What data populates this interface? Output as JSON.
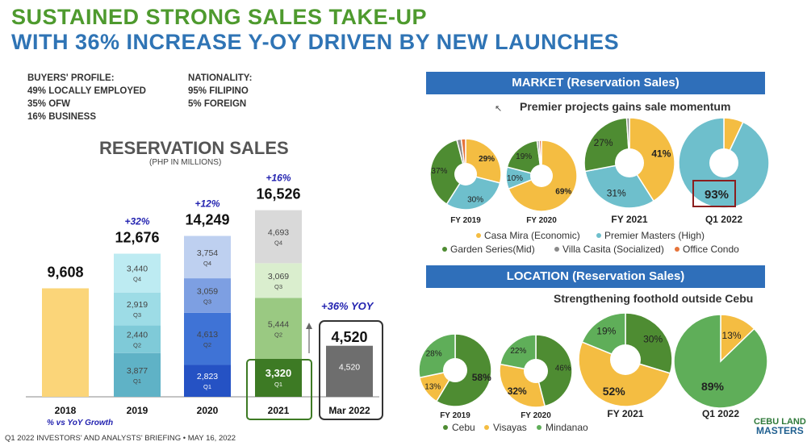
{
  "title_line1": "SUSTAINED STRONG SALES TAKE-UP",
  "title_line2": "WITH 36% INCREASE Y-OY DRIVEN BY NEW LAUNCHES",
  "buyers_profile": {
    "heading": "BUYERS' PROFILE:",
    "items": [
      "49% LOCALLY EMPLOYED",
      "35% OFW",
      "16% BUSINESS"
    ]
  },
  "nationality": {
    "heading": "NATIONALITY:",
    "items": [
      "95% FILIPINO",
      "5% FOREIGN"
    ]
  },
  "footer": "Q1 2022 INVESTORS' AND ANALYSTS' BRIEFING • MAY 16, 2022",
  "logo": {
    "line1": "CEBU LAND",
    "line2": "MASTERS"
  },
  "chart_data": [
    {
      "type": "bar",
      "title": "RESERVATION SALES",
      "subtitle": "(PHP IN MILLIONS)",
      "categories": [
        "2018",
        "2019",
        "2020",
        "2021",
        "Mar 2022"
      ],
      "totals": [
        "9,608",
        "12,676",
        "14,249",
        "16,526",
        "4,520"
      ],
      "growth": [
        "",
        "+32%",
        "+12%",
        "+16%",
        ""
      ],
      "quarterly": [
        {
          "category": "2018",
          "values": [
            9608
          ],
          "labels": [
            ""
          ],
          "colors": [
            "#fbd579"
          ]
        },
        {
          "category": "2019",
          "values": [
            3877,
            2440,
            2919,
            3440
          ],
          "labels": [
            "Q1",
            "Q2",
            "Q3",
            "Q4"
          ],
          "colors": [
            "#5fb2c6",
            "#7fcad8",
            "#9ddce6",
            "#bdebf2"
          ]
        },
        {
          "category": "2020",
          "values": [
            2823,
            4613,
            3059,
            3754
          ],
          "labels": [
            "Q1",
            "Q2",
            "Q3",
            "Q4"
          ],
          "colors": [
            "#2552c4",
            "#3f73d6",
            "#7d9fe2",
            "#bed0f0"
          ]
        },
        {
          "category": "2021",
          "values": [
            3320,
            5444,
            3069,
            4693
          ],
          "labels": [
            "Q1",
            "Q2",
            "Q3",
            "Q4"
          ],
          "colors": [
            "#3d7a24",
            "#9ac982",
            "#daeece",
            "#d9d9d9"
          ]
        },
        {
          "category": "Mar 2022",
          "values": [
            4520
          ],
          "labels": [
            ""
          ],
          "colors": [
            "#6e6e6e"
          ]
        }
      ],
      "value_labels": {
        "2019": [
          "3,877",
          "2,440",
          "2,919",
          "3,440"
        ],
        "2020": [
          "2,823",
          "4,613",
          "3,059",
          "3,754"
        ],
        "2021": [
          "3,320",
          "5,444",
          "3,069",
          "4,693"
        ],
        "Mar 2022": [
          "4,520"
        ]
      },
      "yoy_callout": "+36% YOY",
      "note": "% vs YoY Growth"
    },
    {
      "type": "pie",
      "title": "MARKET (Reservation Sales)",
      "subtitle": "Premier projects gains sale momentum",
      "legend": [
        {
          "name": "Casa Mira (Economic)",
          "color": "#f4bd42"
        },
        {
          "name": "Premier Masters (High)",
          "color": "#6ebfcc"
        },
        {
          "name": "Garden Series(Mid)",
          "color": "#4e8c32"
        },
        {
          "name": "Villa Casita (Socialized)",
          "color": "#8a8a8a"
        },
        {
          "name": "Office Condo",
          "color": "#e6743a"
        }
      ],
      "pies": [
        {
          "label": "FY 2019",
          "slices": [
            29,
            30,
            37,
            2,
            2
          ],
          "shown": [
            "29%",
            "30%",
            "37%",
            "",
            ""
          ]
        },
        {
          "label": "FY 2020",
          "slices": [
            69,
            10,
            19,
            1,
            1
          ],
          "shown": [
            "69%",
            "10%",
            "19%",
            "",
            ""
          ]
        },
        {
          "label": "FY 2021",
          "slices": [
            41,
            31,
            27,
            1,
            0
          ],
          "shown": [
            "41%",
            "31%",
            "27%",
            "",
            ""
          ]
        },
        {
          "label": "Q1 2022",
          "slices": [
            7,
            93,
            0,
            0,
            0
          ],
          "shown": [
            "",
            "93%",
            "",
            "",
            ""
          ]
        }
      ]
    },
    {
      "type": "pie",
      "title": "LOCATION (Reservation Sales)",
      "subtitle": "Strengthening foothold outside Cebu",
      "legend": [
        {
          "name": "Cebu",
          "color": "#4e8c32"
        },
        {
          "name": "Visayas",
          "color": "#f4bd42"
        },
        {
          "name": "Mindanao",
          "color": "#5fae59"
        }
      ],
      "pies": [
        {
          "label": "FY 2019",
          "slices": [
            58,
            13,
            28
          ],
          "shown": [
            "58%",
            "13%",
            "28%"
          ]
        },
        {
          "label": "FY 2020",
          "slices": [
            46,
            32,
            22
          ],
          "shown": [
            "46%",
            "32%",
            "22%"
          ]
        },
        {
          "label": "FY 2021",
          "slices": [
            30,
            52,
            19
          ],
          "shown": [
            "30%",
            "52%",
            "19%"
          ]
        },
        {
          "label": "Q1 2022",
          "slices": [
            0,
            13,
            89
          ],
          "shown": [
            "",
            "13%",
            "89%"
          ]
        }
      ]
    }
  ]
}
